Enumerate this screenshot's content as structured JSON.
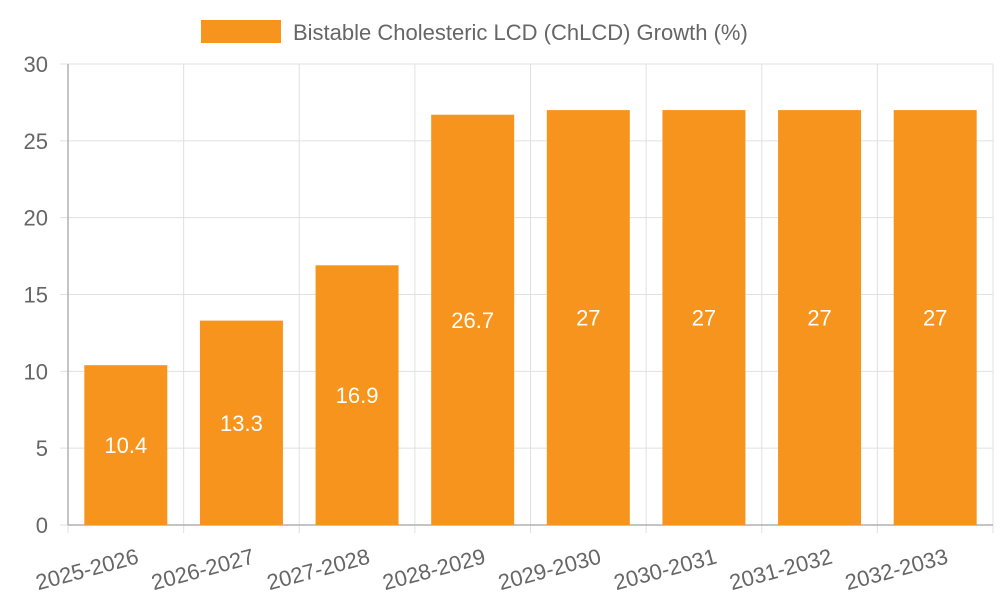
{
  "chart_data": {
    "type": "bar",
    "title": "",
    "xlabel": "",
    "ylabel": "",
    "categories": [
      "2025-2026",
      "2026-2027",
      "2027-2028",
      "2028-2029",
      "2029-2030",
      "2030-2031",
      "2031-2032",
      "2032-2033"
    ],
    "series": [
      {
        "name": "Bistable Cholesteric LCD (ChLCD) Growth (%)",
        "values": [
          10.4,
          13.3,
          16.9,
          26.7,
          27,
          27,
          27,
          27
        ],
        "color": "#f7941d"
      }
    ],
    "ylim": [
      0,
      30
    ],
    "yticks": [
      0,
      5,
      10,
      15,
      20,
      25,
      30
    ],
    "grid": true,
    "legend_position": "top",
    "data_labels": true
  }
}
